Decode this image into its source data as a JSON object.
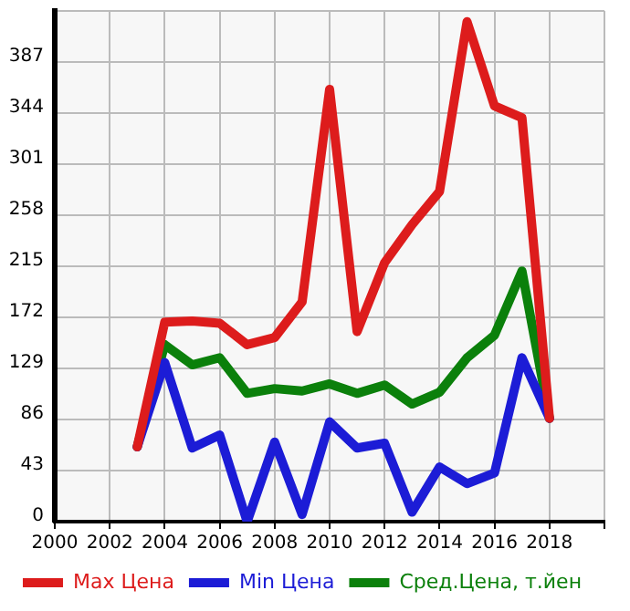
{
  "chart_data": {
    "type": "line",
    "x": [
      2003,
      2004,
      2005,
      2006,
      2007,
      2008,
      2009,
      2010,
      2011,
      2012,
      2013,
      2014,
      2015,
      2016,
      2017,
      2018
    ],
    "series": [
      {
        "name": "Max Цена",
        "color": "#dd1c1c",
        "values": [
          63,
          168,
          169,
          167,
          149,
          155,
          185,
          364,
          160,
          218,
          250,
          278,
          421,
          350,
          340,
          87
        ]
      },
      {
        "name": "Min Цена",
        "color": "#1c1cd6",
        "values": [
          63,
          134,
          62,
          73,
          0,
          67,
          6,
          84,
          62,
          66,
          8,
          46,
          32,
          41,
          138,
          87
        ]
      },
      {
        "name": "Сред.Цена, т.йен",
        "color": "#0b800b",
        "values": [
          63,
          149,
          132,
          138,
          108,
          112,
          110,
          116,
          108,
          115,
          99,
          109,
          138,
          157,
          211,
          87
        ]
      }
    ],
    "xlim": [
      2000,
      2020
    ],
    "xticks": [
      2000,
      2002,
      2004,
      2006,
      2008,
      2010,
      2012,
      2014,
      2016,
      2018,
      {
        "value": 2020,
        "label": null
      }
    ],
    "ylim": [
      0,
      430
    ],
    "yticks": [
      0,
      43,
      86,
      129,
      172,
      215,
      258,
      301,
      344,
      387,
      {
        "value": 430,
        "label": null
      }
    ],
    "grid": true,
    "legend": "bottom",
    "marker": "none",
    "line_style": "solid"
  }
}
